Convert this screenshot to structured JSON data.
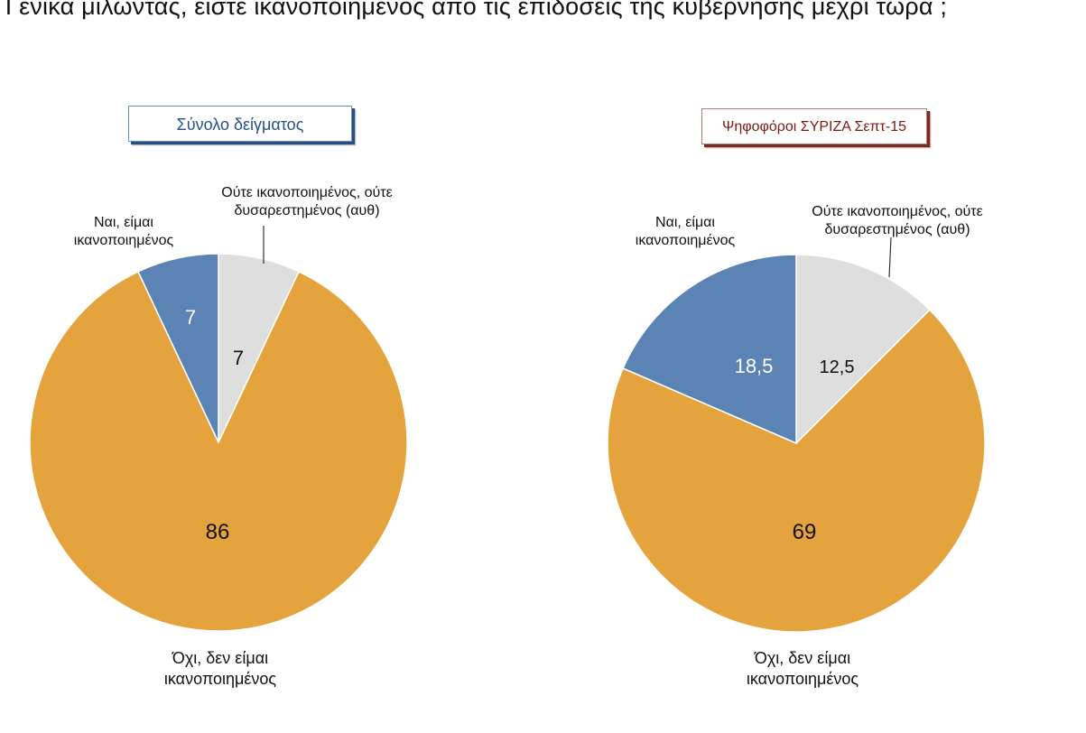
{
  "page": {
    "title": "Γενικά μιλώντας, είστε ικανοποιημένος από τις επιδόσεις της κυβέρνησης μέχρι τώρα ;"
  },
  "colors": {
    "yes": "#5b84b5",
    "neither": "#dedede",
    "no": "#e5a33e",
    "left_badge": "#25518a",
    "right_badge": "#7a1a12"
  },
  "chart_data": [
    {
      "type": "pie",
      "title": "Σύνολο δείγματος",
      "slices": [
        {
          "key": "neither",
          "value": 7,
          "label": "7",
          "category": [
            "Ούτε ικανοποιημένος, ούτε",
            "δυσαρεστημένος (αυθ)"
          ]
        },
        {
          "key": "no",
          "value": 86,
          "label": "86",
          "category": [
            "Όχι, δεν είμαι",
            "ικανοποιημένος"
          ]
        },
        {
          "key": "yes",
          "value": 7,
          "label": "7",
          "category": [
            "Ναι, είμαι",
            "ικανοποιημένος"
          ]
        }
      ]
    },
    {
      "type": "pie",
      "title": "Ψηφοφόροι ΣΥΡΙΖΑ Σεπτ-15",
      "slices": [
        {
          "key": "neither",
          "value": 12.5,
          "label": "12,5",
          "category": [
            "Ούτε ικανοποιημένος, ούτε",
            "δυσαρεστημένος (αυθ)"
          ]
        },
        {
          "key": "no",
          "value": 69,
          "label": "69",
          "category": [
            "Όχι, δεν είμαι",
            "ικανοποιημένος"
          ]
        },
        {
          "key": "yes",
          "value": 18.5,
          "label": "18,5",
          "category": [
            "Ναι, είμαι",
            "ικανοποιημένος"
          ]
        }
      ]
    }
  ]
}
